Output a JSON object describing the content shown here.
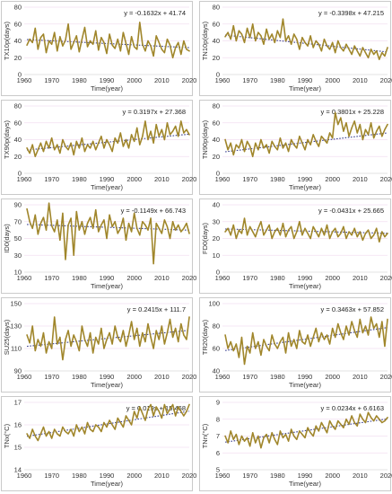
{
  "colors": {
    "series": "#a0862b",
    "trend": "#3a3f8f",
    "grid": "#f2dff1",
    "panel_border": "#bdbdbd",
    "highlights": [
      "#2e9e3e",
      "#d94fb3"
    ]
  },
  "chart_data": [
    {
      "type": "line",
      "panel": "top-left",
      "ylabel": "TX10p(days)",
      "xlabel": "Time(year)",
      "equation": "y = -0.1632x + 41.74",
      "slope": -0.1632,
      "intercept": 41.74,
      "x_start": 1961,
      "x_end": 2020,
      "xlim": [
        1960,
        2020
      ],
      "ylim": [
        0,
        80
      ],
      "xticks": [
        "1960",
        "1970",
        "1980",
        "1990",
        "2000",
        "2010",
        "2020"
      ],
      "yticks": [
        "0",
        "20",
        "40",
        "60",
        "80"
      ],
      "grid": true,
      "legend": "none",
      "values": [
        35,
        42,
        38,
        55,
        30,
        44,
        48,
        26,
        40,
        36,
        50,
        28,
        45,
        34,
        41,
        60,
        30,
        38,
        46,
        27,
        42,
        56,
        33,
        40,
        36,
        52,
        29,
        44,
        38,
        25,
        48,
        35,
        31,
        42,
        28,
        50,
        37,
        24,
        45,
        33,
        30,
        62,
        36,
        28,
        40,
        34,
        22,
        46,
        38,
        30,
        26,
        42,
        35,
        20,
        32,
        38,
        24,
        40,
        30,
        28
      ]
    },
    {
      "type": "line",
      "panel": "top-right",
      "ylabel": "TN10p(days)",
      "xlabel": "Time(year)",
      "equation": "y = -0.3398x + 47.215",
      "slope": -0.3398,
      "intercept": 47.215,
      "x_start": 1961,
      "x_end": 2020,
      "xlim": [
        1960,
        2020
      ],
      "ylim": [
        0,
        80
      ],
      "xticks": [
        "1960",
        "1970",
        "1980",
        "1990",
        "2000",
        "2010",
        "2020"
      ],
      "yticks": [
        "0",
        "20",
        "40",
        "60",
        "80"
      ],
      "grid": true,
      "legend": "none",
      "values": [
        45,
        50,
        42,
        58,
        40,
        52,
        48,
        38,
        55,
        44,
        60,
        40,
        50,
        46,
        36,
        54,
        42,
        48,
        38,
        52,
        44,
        66,
        40,
        46,
        36,
        48,
        42,
        30,
        44,
        38,
        34,
        46,
        32,
        40,
        36,
        28,
        42,
        34,
        30,
        38,
        26,
        40,
        32,
        28,
        36,
        30,
        24,
        34,
        28,
        22,
        32,
        26,
        20,
        30,
        24,
        28,
        18,
        26,
        22,
        32
      ]
    },
    {
      "type": "line",
      "panel": "second-left",
      "ylabel": "TX90p(days)",
      "xlabel": "Time(year)",
      "equation": "y = 0.3197x + 27.368",
      "slope": 0.3197,
      "intercept": 27.368,
      "x_start": 1961,
      "x_end": 2020,
      "xlim": [
        1960,
        2020
      ],
      "ylim": [
        0,
        80
      ],
      "xticks": [
        "1960",
        "1970",
        "1980",
        "1990",
        "2000",
        "2010",
        "2020"
      ],
      "yticks": [
        "0",
        "20",
        "40",
        "60",
        "80"
      ],
      "grid": true,
      "legend": "none",
      "values": [
        30,
        24,
        34,
        20,
        28,
        36,
        26,
        38,
        30,
        42,
        28,
        34,
        24,
        40,
        32,
        28,
        36,
        22,
        38,
        30,
        42,
        26,
        34,
        30,
        38,
        28,
        36,
        44,
        30,
        40,
        34,
        26,
        42,
        36,
        48,
        32,
        40,
        30,
        46,
        38,
        54,
        34,
        44,
        62,
        40,
        50,
        36,
        58,
        44,
        52,
        40,
        60,
        46,
        50,
        56,
        44,
        62,
        48,
        52,
        46
      ]
    },
    {
      "type": "line",
      "panel": "second-right",
      "ylabel": "TN90p(days)",
      "xlabel": "Time(year)",
      "equation": "y = 0.3801x + 25.228",
      "slope": 0.3801,
      "intercept": 25.228,
      "x_start": 1961,
      "x_end": 2020,
      "xlim": [
        1960,
        2020
      ],
      "ylim": [
        0,
        80
      ],
      "xticks": [
        "1960",
        "1970",
        "1980",
        "1990",
        "2000",
        "2010",
        "2020"
      ],
      "yticks": [
        "0",
        "20",
        "40",
        "60",
        "80"
      ],
      "grid": true,
      "legend": "none",
      "values": [
        40,
        28,
        36,
        22,
        34,
        30,
        40,
        26,
        38,
        32,
        20,
        36,
        28,
        40,
        30,
        34,
        24,
        38,
        32,
        28,
        42,
        30,
        36,
        26,
        40,
        34,
        30,
        44,
        36,
        28,
        40,
        34,
        46,
        38,
        32,
        44,
        40,
        36,
        48,
        42,
        72,
        58,
        66,
        50,
        60,
        44,
        54,
        62,
        48,
        58,
        40,
        52,
        46,
        60,
        42,
        50,
        56,
        44,
        52,
        58
      ]
    },
    {
      "type": "line",
      "panel": "third-left",
      "ylabel": "ID0(days)",
      "xlabel": "Time(year)",
      "equation": "y = -0.1149x + 66.743",
      "slope": -0.1149,
      "intercept": 66.743,
      "x_start": 1961,
      "x_end": 2020,
      "xlim": [
        1960,
        2020
      ],
      "ylim": [
        10,
        90
      ],
      "xticks": [
        "1960",
        "1970",
        "1980",
        "1990",
        "2000",
        "2010",
        "2020"
      ],
      "yticks": [
        "10",
        "30",
        "50",
        "70",
        "90"
      ],
      "grid": true,
      "legend": "none",
      "values": [
        85,
        70,
        62,
        78,
        55,
        68,
        75,
        60,
        92,
        65,
        58,
        72,
        48,
        80,
        25,
        66,
        74,
        30,
        82,
        60,
        70,
        55,
        68,
        75,
        62,
        84,
        58,
        66,
        72,
        50,
        78,
        64,
        70,
        56,
        62,
        74,
        48,
        68,
        58,
        80,
        62,
        54,
        70,
        66,
        60,
        74,
        20,
        68,
        62,
        56,
        72,
        64,
        50,
        70,
        60,
        66,
        58,
        62,
        68,
        56
      ]
    },
    {
      "type": "line",
      "panel": "third-right",
      "ylabel": "FD0(days)",
      "xlabel": "Time(year)",
      "equation": "y = -0.0431x + 25.665",
      "slope": -0.0431,
      "intercept": 25.665,
      "x_start": 1961,
      "x_end": 2020,
      "xlim": [
        1960,
        2020
      ],
      "ylim": [
        0,
        40
      ],
      "xticks": [
        "1960",
        "1970",
        "1980",
        "1990",
        "2000",
        "2010",
        "2020"
      ],
      "yticks": [
        "0",
        "10",
        "20",
        "30",
        "40"
      ],
      "grid": true,
      "legend": "none",
      "values": [
        24,
        26,
        22,
        28,
        20,
        25,
        23,
        32,
        22,
        27,
        24,
        21,
        26,
        30,
        22,
        25,
        28,
        20,
        24,
        26,
        22,
        29,
        21,
        25,
        27,
        20,
        24,
        30,
        22,
        26,
        23,
        20,
        27,
        24,
        21,
        26,
        22,
        28,
        20,
        24,
        26,
        21,
        23,
        27,
        20,
        24,
        22,
        26,
        21,
        24,
        19,
        23,
        25,
        20,
        22,
        26,
        18,
        24,
        21,
        23
      ]
    },
    {
      "type": "line",
      "panel": "fourth-left",
      "ylabel": "SU25(days)",
      "xlabel": "Time(year)",
      "equation": "y = 0.2415x + 111.7",
      "slope": 0.2415,
      "intercept": 111.7,
      "x_start": 1961,
      "x_end": 2020,
      "xlim": [
        1960,
        2020
      ],
      "ylim": [
        90,
        150
      ],
      "xticks": [
        "1960",
        "1970",
        "1980",
        "1990",
        "2000",
        "2010",
        "2020"
      ],
      "yticks": [
        "90",
        "110",
        "130",
        "150"
      ],
      "grid": true,
      "legend": "none",
      "values": [
        122,
        115,
        130,
        108,
        118,
        112,
        124,
        106,
        116,
        110,
        138,
        114,
        120,
        100,
        118,
        126,
        112,
        122,
        116,
        108,
        130,
        118,
        112,
        124,
        106,
        120,
        114,
        128,
        110,
        118,
        124,
        114,
        130,
        120,
        116,
        126,
        112,
        122,
        134,
        118,
        128,
        112,
        124,
        116,
        132,
        120,
        110,
        126,
        118,
        130,
        114,
        124,
        136,
        120,
        128,
        116,
        132,
        122,
        118,
        138
      ]
    },
    {
      "type": "line",
      "panel": "fourth-right",
      "ylabel": "TR20(days)",
      "xlabel": "Time(year)",
      "equation": "y = 0.3463x + 57.852",
      "slope": 0.3463,
      "intercept": 57.852,
      "x_start": 1961,
      "x_end": 2020,
      "xlim": [
        1960,
        2020
      ],
      "ylim": [
        40,
        100
      ],
      "xticks": [
        "1960",
        "1970",
        "1980",
        "1990",
        "2000",
        "2010",
        "2020"
      ],
      "yticks": [
        "40",
        "60",
        "80",
        "100"
      ],
      "grid": true,
      "legend": "none",
      "values": [
        72,
        60,
        66,
        58,
        64,
        52,
        70,
        46,
        62,
        56,
        74,
        60,
        66,
        54,
        68,
        62,
        58,
        72,
        64,
        60,
        66,
        70,
        56,
        74,
        62,
        68,
        60,
        76,
        66,
        64,
        72,
        62,
        70,
        78,
        66,
        74,
        68,
        72,
        64,
        78,
        70,
        82,
        74,
        68,
        80,
        72,
        84,
        76,
        70,
        86,
        74,
        80,
        72,
        88,
        78,
        82,
        70,
        84,
        62,
        86
      ]
    },
    {
      "type": "line",
      "panel": "bottom-left",
      "ylabel": "TNx(°C)",
      "xlabel": "Time(year)",
      "equation": "y = 0.019x + 15.468",
      "slope": 0.019,
      "intercept": 15.468,
      "x_start": 1961,
      "x_end": 2020,
      "xlim": [
        1960,
        2020
      ],
      "ylim": [
        14,
        17
      ],
      "xticks": [
        "1960",
        "1970",
        "1980",
        "1990",
        "2000",
        "2010",
        "2020"
      ],
      "yticks": [
        "14",
        "15",
        "16",
        "17"
      ],
      "grid": true,
      "legend": "none",
      "values": [
        15.6,
        15.4,
        15.8,
        15.5,
        15.3,
        15.6,
        15.9,
        15.5,
        15.7,
        15.4,
        15.8,
        15.6,
        15.5,
        15.9,
        15.7,
        15.6,
        15.8,
        15.5,
        16.0,
        15.7,
        15.9,
        15.6,
        16.1,
        15.8,
        15.7,
        16.0,
        15.9,
        15.7,
        16.1,
        15.9,
        16.2,
        16.0,
        15.8,
        16.3,
        16.1,
        15.9,
        16.4,
        16.2,
        16.0,
        16.6,
        16.3,
        16.8,
        16.5,
        16.2,
        16.7,
        16.9,
        16.4,
        16.8,
        16.6,
        16.3,
        16.9,
        16.5,
        16.7,
        16.9,
        16.4,
        16.8,
        16.6,
        16.4,
        16.6,
        16.9
      ]
    },
    {
      "type": "line",
      "panel": "bottom-right",
      "ylabel": "TNn(°C)",
      "xlabel": "Time(year)",
      "equation": "y = 0.0234x + 6.6163",
      "slope": 0.0234,
      "intercept": 6.6163,
      "x_start": 1961,
      "x_end": 2020,
      "xlim": [
        1960,
        2020
      ],
      "ylim": [
        5,
        9
      ],
      "xticks": [
        "1960",
        "1970",
        "1980",
        "1990",
        "2000",
        "2010",
        "2020"
      ],
      "yticks": [
        "5",
        "6",
        "7",
        "8",
        "9"
      ],
      "grid": true,
      "legend": "none",
      "values": [
        7.0,
        6.6,
        7.3,
        6.8,
        7.1,
        6.5,
        7.0,
        6.7,
        6.9,
        6.4,
        7.2,
        6.6,
        7.0,
        6.3,
        6.9,
        7.1,
        6.6,
        7.2,
        6.8,
        6.5,
        7.3,
        6.9,
        7.1,
        6.7,
        7.4,
        7.0,
        6.8,
        7.3,
        7.1,
        6.9,
        7.5,
        7.2,
        7.0,
        7.6,
        7.3,
        7.8,
        7.5,
        7.2,
        7.9,
        7.6,
        7.4,
        7.9,
        7.7,
        7.5,
        8.0,
        7.7,
        8.2,
        7.8,
        7.6,
        8.3,
        8.0,
        7.8,
        8.4,
        8.1,
        7.9,
        8.2,
        8.0,
        7.8,
        7.9,
        8.1
      ]
    }
  ]
}
